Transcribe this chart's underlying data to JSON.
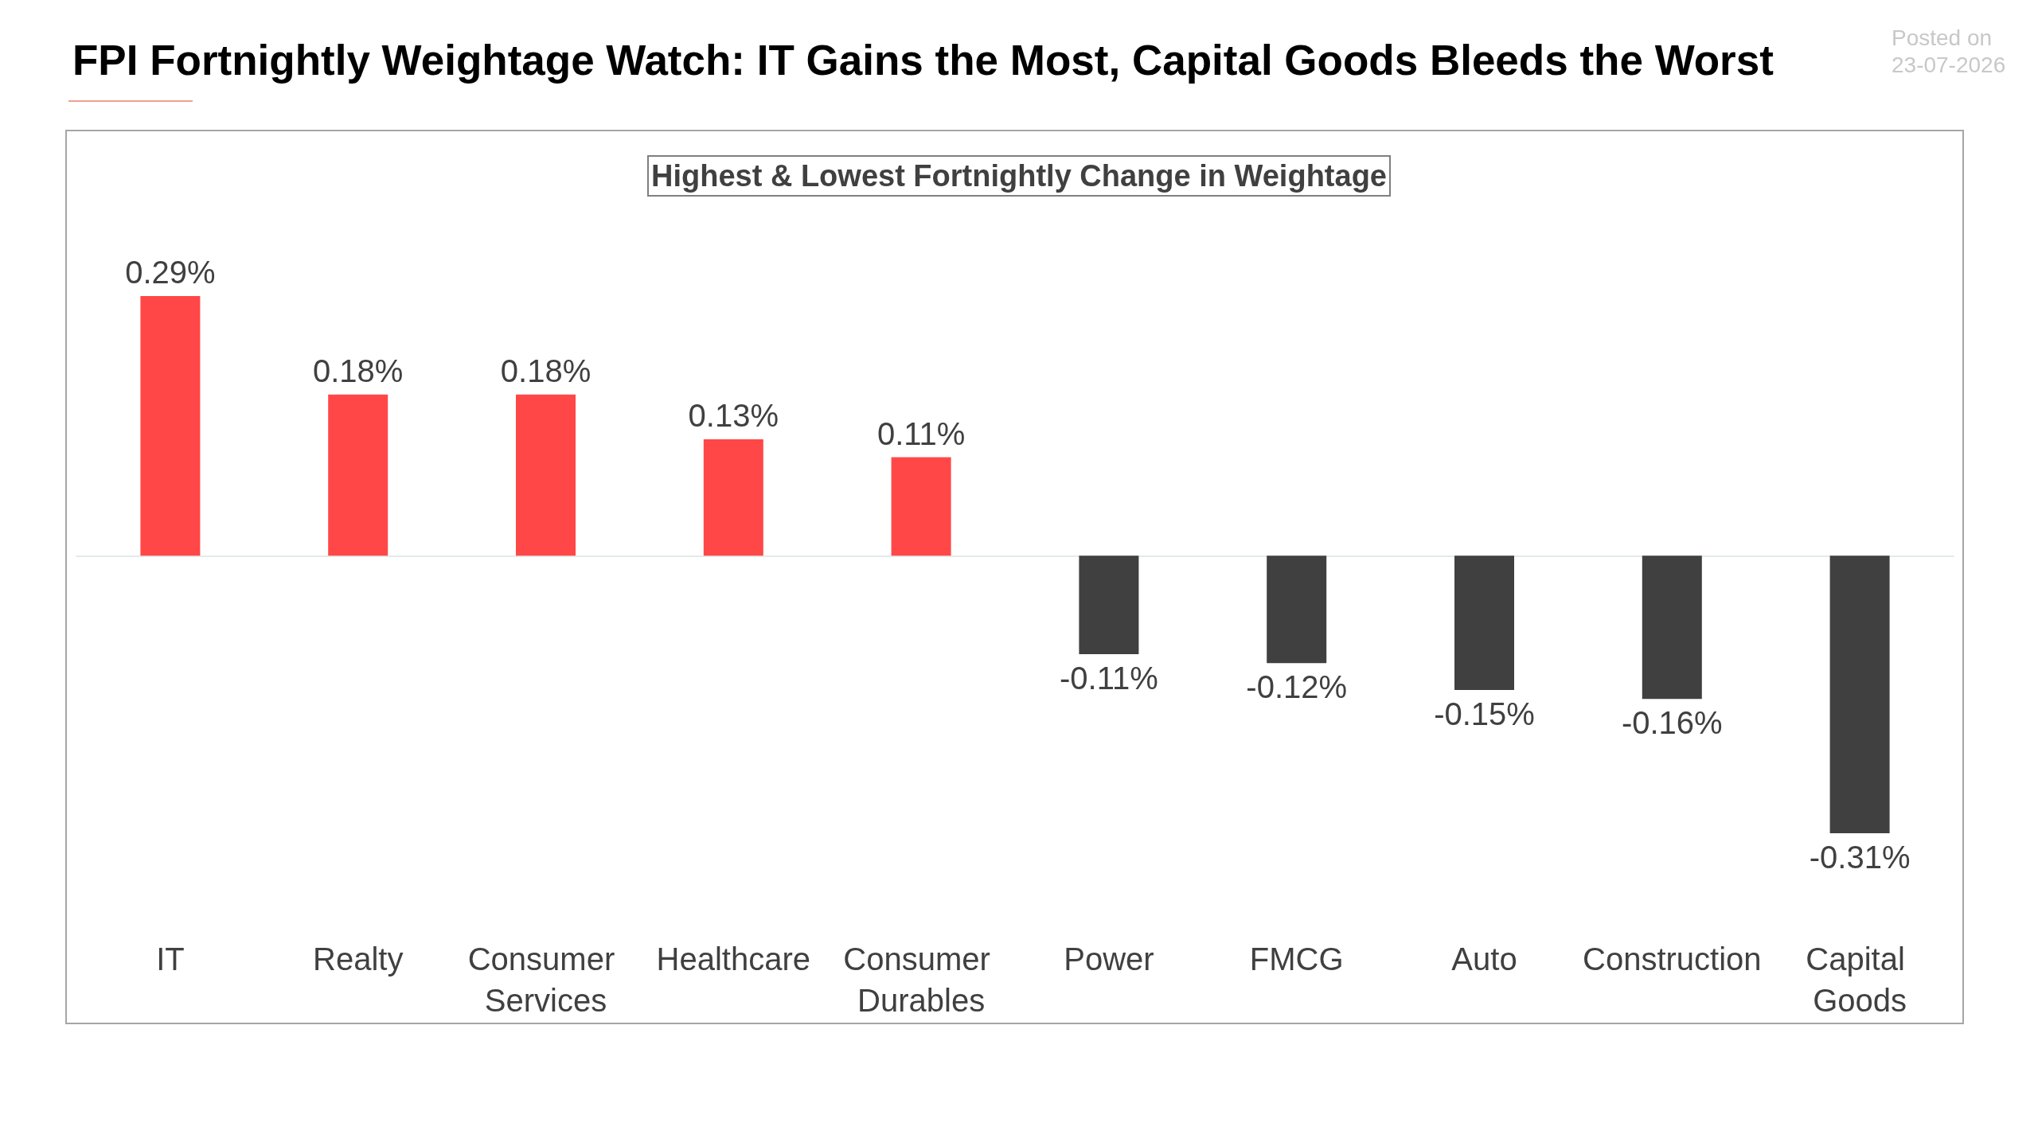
{
  "chart_data": {
    "type": "bar",
    "title": "FPI Fortnightly Weightage Watch: IT Gains the Most, Capital Goods Bleeds the Worst",
    "subtitle": "Highest & Lowest Fortnightly Change in Weightage",
    "categories": [
      "IT",
      "Realty",
      "Consumer Services",
      "Healthcare",
      "Consumer Durables",
      "Power",
      "FMCG",
      "Auto",
      "Construction",
      "Capital Goods"
    ],
    "values": [
      0.29,
      0.18,
      0.18,
      0.13,
      0.11,
      -0.11,
      -0.12,
      -0.15,
      -0.16,
      -0.31
    ],
    "colors": [
      "#ff4747",
      "#ff4747",
      "#ff4747",
      "#ff4747",
      "#ff4747",
      "#404040",
      "#404040",
      "#404040",
      "#404040",
      "#404040"
    ],
    "value_labels": [
      "0.29%",
      "0.18%",
      "0.18%",
      "0.13%",
      "0.11%",
      "-0.11%",
      "-0.12%",
      "-0.15%",
      "-0.16%",
      "-0.31%"
    ],
    "annotations": [
      "Posted on 23-07-2026"
    ]
  }
}
